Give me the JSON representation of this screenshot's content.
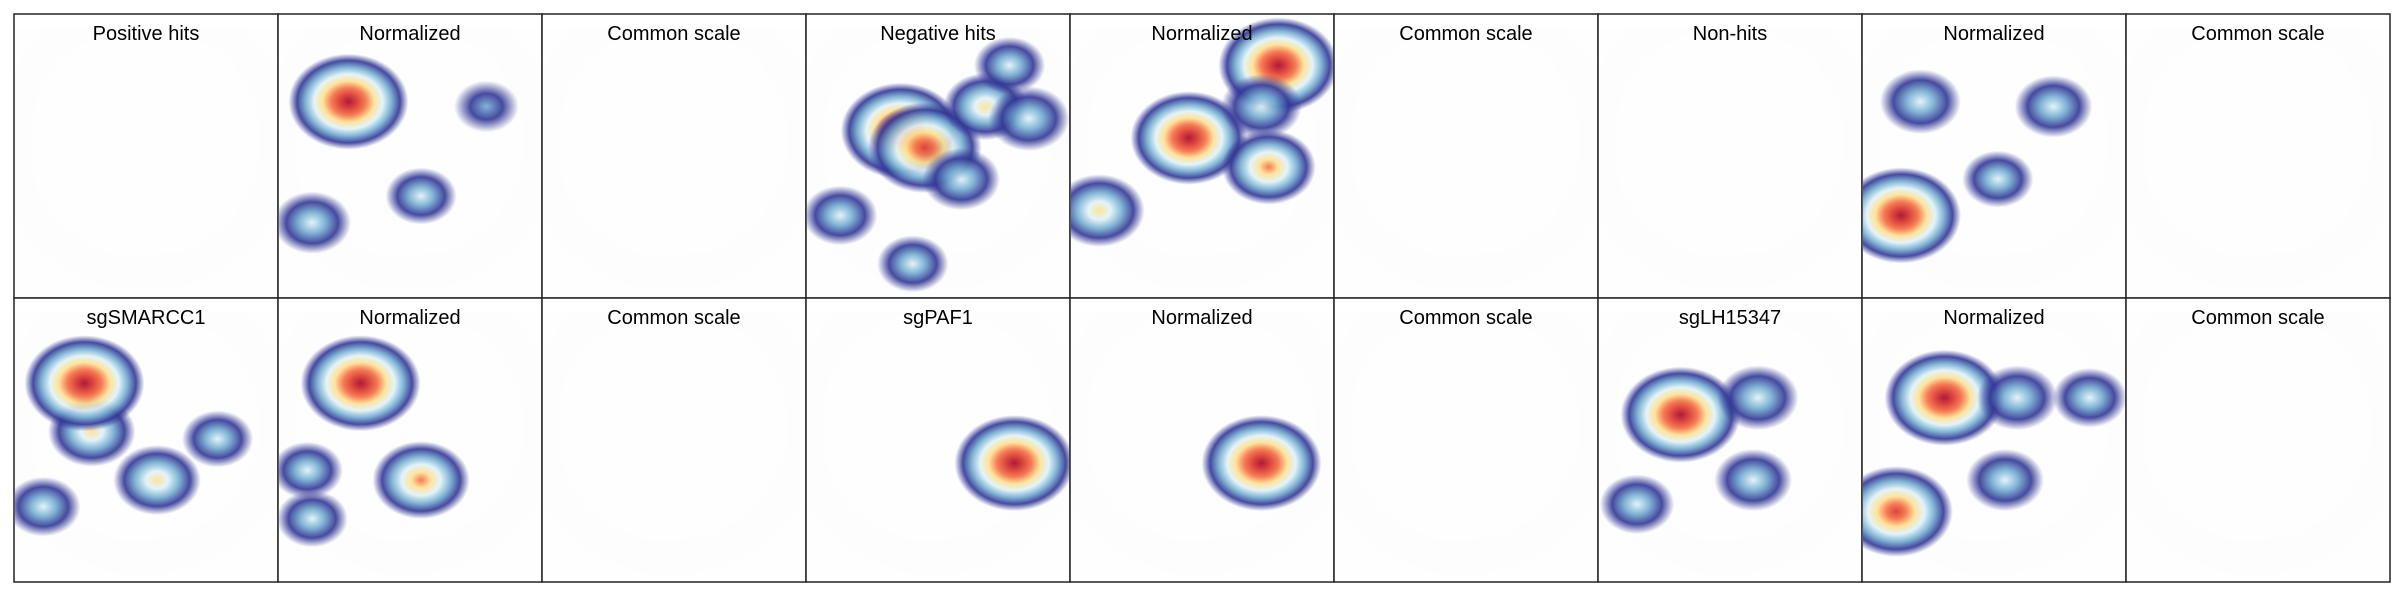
{
  "chart_data": {
    "type": "heatmap",
    "description_of_panels": "grid",
    "rows": [
      {
        "panels": [
          {
            "title": "Positive hits",
            "mode": "raw",
            "hotspots": []
          },
          {
            "title": "Normalized",
            "mode": "normalized",
            "hotspots": [
              {
                "u": 0.25,
                "v": 0.23,
                "intensity": 1.0
              },
              {
                "u": 0.1,
                "v": 0.73,
                "intensity": 0.35
              },
              {
                "u": 0.55,
                "v": 0.62,
                "intensity": 0.25
              },
              {
                "u": 0.82,
                "v": 0.25,
                "intensity": 0.15
              }
            ]
          },
          {
            "title": "Common scale",
            "mode": "common",
            "hotspots": []
          },
          {
            "title": "Negative hits",
            "mode": "raw",
            "hotspots": [
              {
                "u": 0.35,
                "v": 0.35,
                "intensity": 1.0
              },
              {
                "u": 0.45,
                "v": 0.42,
                "intensity": 0.9
              },
              {
                "u": 0.7,
                "v": 0.25,
                "intensity": 0.45
              },
              {
                "u": 0.88,
                "v": 0.3,
                "intensity": 0.4
              },
              {
                "u": 0.6,
                "v": 0.55,
                "intensity": 0.35
              },
              {
                "u": 0.1,
                "v": 0.7,
                "intensity": 0.3
              },
              {
                "u": 0.4,
                "v": 0.9,
                "intensity": 0.25
              },
              {
                "u": 0.8,
                "v": 0.08,
                "intensity": 0.25
              }
            ]
          },
          {
            "title": "Normalized",
            "mode": "normalized",
            "hotspots": [
              {
                "u": 0.82,
                "v": 0.08,
                "intensity": 1.0
              },
              {
                "u": 0.45,
                "v": 0.38,
                "intensity": 0.95
              },
              {
                "u": 0.78,
                "v": 0.5,
                "intensity": 0.6
              },
              {
                "u": 0.75,
                "v": 0.25,
                "intensity": 0.4
              },
              {
                "u": 0.08,
                "v": 0.68,
                "intensity": 0.55
              }
            ]
          },
          {
            "title": "Common scale",
            "mode": "common",
            "hotspots": []
          },
          {
            "title": "Non-hits",
            "mode": "raw",
            "hotspots": []
          },
          {
            "title": "Normalized",
            "mode": "normalized",
            "hotspots": [
              {
                "u": 0.12,
                "v": 0.7,
                "intensity": 1.0
              },
              {
                "u": 0.2,
                "v": 0.23,
                "intensity": 0.4
              },
              {
                "u": 0.75,
                "v": 0.25,
                "intensity": 0.35
              },
              {
                "u": 0.52,
                "v": 0.55,
                "intensity": 0.25
              }
            ]
          },
          {
            "title": "Common scale",
            "mode": "common",
            "hotspots": []
          }
        ]
      },
      {
        "panels": [
          {
            "title": "sgSMARCC1",
            "mode": "raw",
            "hotspots": [
              {
                "u": 0.28,
                "v": 0.42,
                "intensity": 0.5
              },
              {
                "u": 0.25,
                "v": 0.22,
                "intensity": 1.0
              },
              {
                "u": 0.55,
                "v": 0.62,
                "intensity": 0.5
              },
              {
                "u": 0.8,
                "v": 0.45,
                "intensity": 0.25
              },
              {
                "u": 0.08,
                "v": 0.73,
                "intensity": 0.3
              }
            ]
          },
          {
            "title": "Normalized",
            "mode": "normalized",
            "hotspots": [
              {
                "u": 0.3,
                "v": 0.22,
                "intensity": 1.0
              },
              {
                "u": 0.55,
                "v": 0.62,
                "intensity": 0.65
              },
              {
                "u": 0.08,
                "v": 0.58,
                "intensity": 0.25
              },
              {
                "u": 0.1,
                "v": 0.78,
                "intensity": 0.25
              }
            ]
          },
          {
            "title": "Common scale",
            "mode": "common",
            "hotspots": []
          },
          {
            "title": "sgPAF1",
            "mode": "raw",
            "hotspots": [
              {
                "u": 0.82,
                "v": 0.55,
                "intensity": 1.0
              }
            ]
          },
          {
            "title": "Normalized",
            "mode": "normalized",
            "hotspots": [
              {
                "u": 0.75,
                "v": 0.55,
                "intensity": 1.0
              }
            ]
          },
          {
            "title": "Common scale",
            "mode": "common",
            "hotspots": []
          },
          {
            "title": "sgLH15347",
            "mode": "raw",
            "hotspots": [
              {
                "u": 0.3,
                "v": 0.35,
                "intensity": 1.0
              },
              {
                "u": 0.62,
                "v": 0.28,
                "intensity": 0.4
              },
              {
                "u": 0.6,
                "v": 0.62,
                "intensity": 0.35
              },
              {
                "u": 0.12,
                "v": 0.72,
                "intensity": 0.3
              }
            ]
          },
          {
            "title": "Normalized",
            "mode": "normalized",
            "hotspots": [
              {
                "u": 0.3,
                "v": 0.28,
                "intensity": 1.0
              },
              {
                "u": 0.6,
                "v": 0.28,
                "intensity": 0.4
              },
              {
                "u": 0.9,
                "v": 0.28,
                "intensity": 0.3
              },
              {
                "u": 0.1,
                "v": 0.75,
                "intensity": 0.9
              },
              {
                "u": 0.55,
                "v": 0.62,
                "intensity": 0.35
              }
            ]
          },
          {
            "title": "Common scale",
            "mode": "common",
            "hotspots": []
          }
        ]
      }
    ],
    "colormap": [
      "#313695",
      "#74add1",
      "#e0f3f8",
      "#fee090",
      "#f46d43",
      "#d73027",
      "#a50026"
    ],
    "embedding_color": "#d9d9d9",
    "grid": false,
    "legend": "none"
  }
}
